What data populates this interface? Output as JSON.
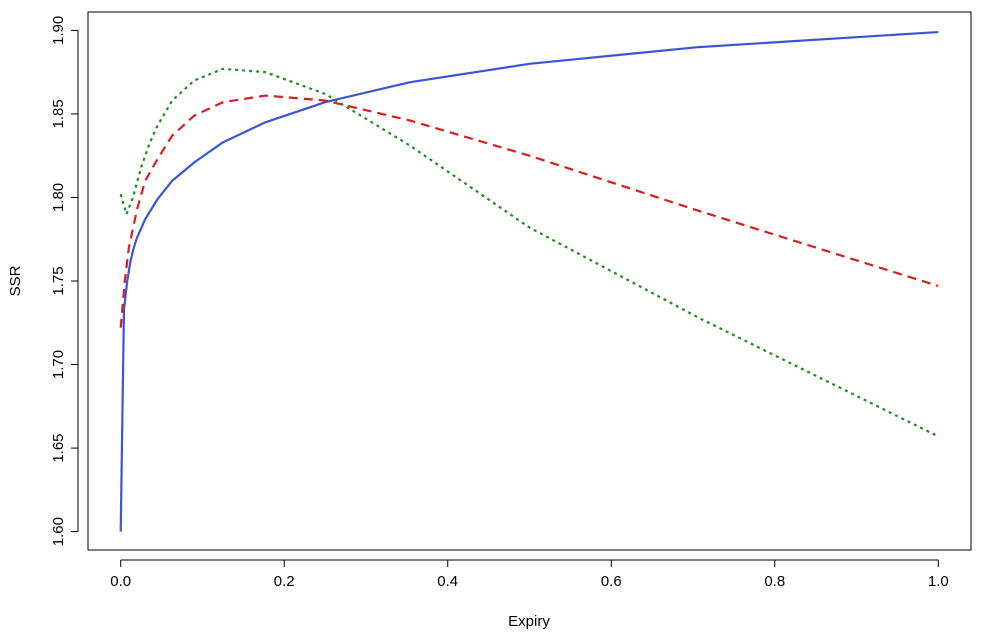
{
  "chart_data": {
    "type": "line",
    "title": "",
    "xlabel": "Expiry",
    "ylabel": "SSR",
    "xlim": [
      -0.04,
      1.04
    ],
    "ylim": [
      1.589,
      1.911
    ],
    "x_ticks": [
      0.0,
      0.2,
      0.4,
      0.6,
      0.8,
      1.0
    ],
    "x_tick_labels": [
      "0.0",
      "0.2",
      "0.4",
      "0.6",
      "0.8",
      "1.0"
    ],
    "y_ticks": [
      1.6,
      1.65,
      1.7,
      1.75,
      1.8,
      1.85,
      1.9
    ],
    "y_tick_labels": [
      "1.60",
      "1.65",
      "1.70",
      "1.75",
      "1.80",
      "1.85",
      "1.90"
    ],
    "grid": false,
    "legend": "none",
    "series": [
      {
        "color": "#3a55d6",
        "dash": "solid",
        "x": [
          0.0,
          0.004,
          0.008,
          0.012,
          0.016,
          0.02,
          0.03,
          0.045,
          0.063,
          0.09,
          0.125,
          0.177,
          0.25,
          0.354,
          0.5,
          0.707,
          1.0
        ],
        "y": [
          1.6,
          1.733,
          1.75,
          1.762,
          1.77,
          1.776,
          1.787,
          1.799,
          1.81,
          1.821,
          1.833,
          1.845,
          1.857,
          1.869,
          1.88,
          1.89,
          1.899
        ]
      },
      {
        "color": "#d62020",
        "dash": "dashed",
        "x": [
          0.0,
          0.005,
          0.01,
          0.02,
          0.03,
          0.045,
          0.063,
          0.09,
          0.125,
          0.177,
          0.25,
          0.354,
          0.5,
          0.707,
          1.0
        ],
        "y": [
          1.722,
          1.75,
          1.77,
          1.793,
          1.81,
          1.823,
          1.837,
          1.849,
          1.857,
          1.861,
          1.858,
          1.846,
          1.825,
          1.792,
          1.747
        ]
      },
      {
        "color": "#228b22",
        "dash": "dotted",
        "x": [
          0.0,
          0.007,
          0.015,
          0.025,
          0.035,
          0.045,
          0.063,
          0.09,
          0.125,
          0.177,
          0.25,
          0.354,
          0.5,
          0.707,
          1.0
        ],
        "y": [
          1.802,
          1.79,
          1.8,
          1.818,
          1.832,
          1.843,
          1.858,
          1.87,
          1.877,
          1.875,
          1.862,
          1.831,
          1.782,
          1.728,
          1.657
        ]
      }
    ]
  }
}
